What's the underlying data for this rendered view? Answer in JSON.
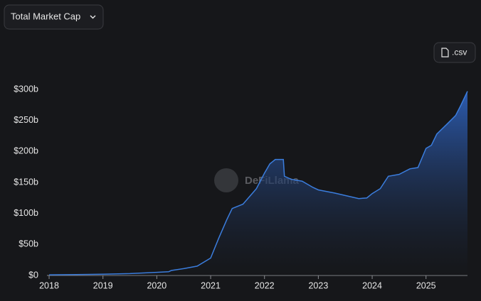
{
  "chart_data": {
    "type": "area",
    "title": "Total Market Cap",
    "export_label": ".csv",
    "watermark": "DeFiLlama",
    "x": [
      2018.0,
      2018.5,
      2019.0,
      2019.5,
      2020.0,
      2020.22,
      2020.27,
      2020.5,
      2020.75,
      2021.0,
      2021.15,
      2021.3,
      2021.4,
      2021.6,
      2021.75,
      2021.85,
      2022.0,
      2022.1,
      2022.2,
      2022.35,
      2022.37,
      2022.5,
      2022.7,
      2022.9,
      2023.0,
      2023.3,
      2023.6,
      2023.75,
      2023.9,
      2024.0,
      2024.15,
      2024.3,
      2024.5,
      2024.7,
      2024.85,
      2025.0,
      2025.1,
      2025.2,
      2025.4,
      2025.55,
      2025.65,
      2025.77
    ],
    "values": [
      1,
      1.5,
      2,
      3,
      5,
      6,
      8,
      11,
      15,
      28,
      60,
      90,
      108,
      115,
      130,
      140,
      165,
      180,
      187,
      187,
      160,
      155,
      152,
      142,
      138,
      133,
      127,
      124,
      125,
      132,
      140,
      160,
      163,
      172,
      174,
      205,
      210,
      228,
      245,
      258,
      275,
      297
    ],
    "color": "#3b7ddd",
    "xlim": [
      2017.96,
      2025.77
    ],
    "xticks": [
      2018,
      2019,
      2020,
      2021,
      2022,
      2023,
      2024,
      2025
    ],
    "ylim": [
      0,
      300
    ],
    "yticks": [
      {
        "value": 0,
        "label": "$0"
      },
      {
        "value": 50,
        "label": "$50b"
      },
      {
        "value": 100,
        "label": "$100b"
      },
      {
        "value": 150,
        "label": "$150b"
      },
      {
        "value": 200,
        "label": "$200b"
      },
      {
        "value": 250,
        "label": "$250b"
      },
      {
        "value": 300,
        "label": "$300b"
      }
    ],
    "grid": false
  }
}
